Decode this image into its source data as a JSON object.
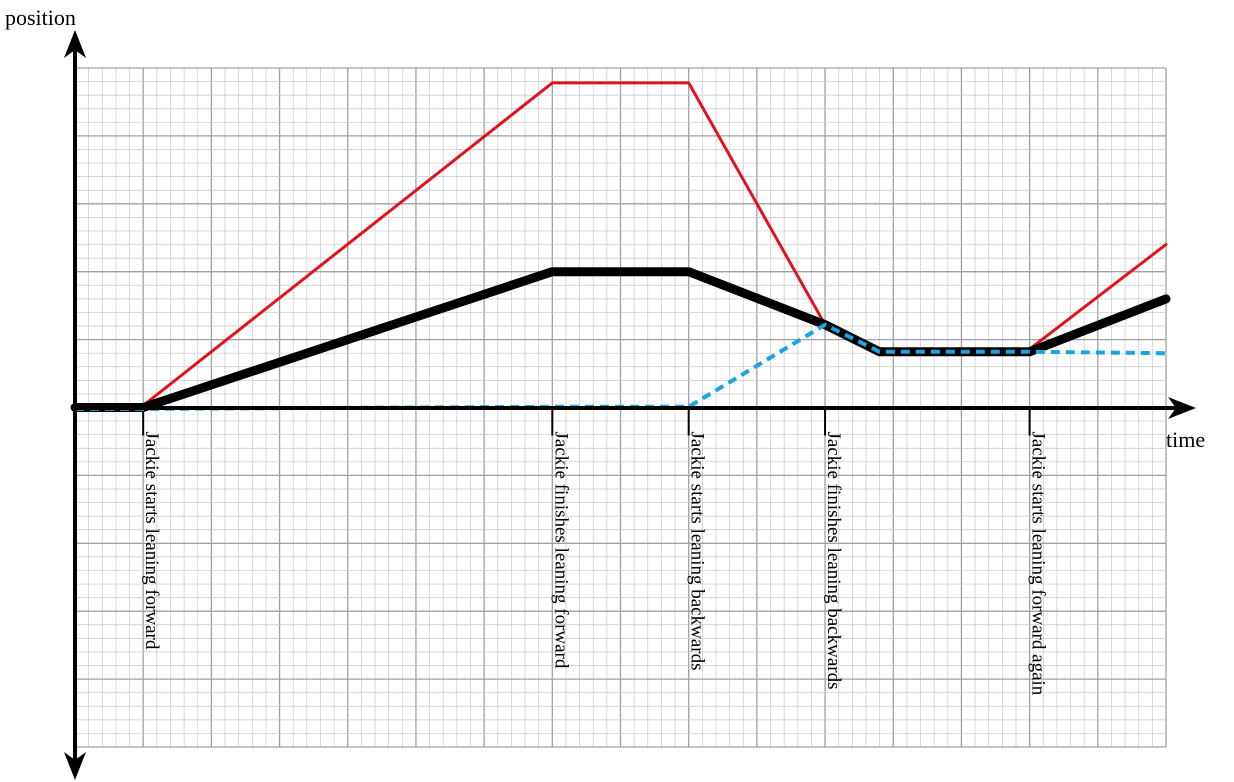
{
  "chart_data": {
    "type": "line",
    "title": "",
    "xlabel": "time",
    "ylabel": "position",
    "xlim": [
      0,
      16
    ],
    "ylim": [
      -5,
      5
    ],
    "grid": true,
    "grid_minor_per_major": 5,
    "events": [
      {
        "x": 1,
        "label": "Jackie starts leaning forward"
      },
      {
        "x": 7,
        "label": "Jackie finishes leaning forward"
      },
      {
        "x": 9,
        "label": "Jackie starts leaning backwards"
      },
      {
        "x": 11,
        "label": "Jackie finishes leaning backwards"
      },
      {
        "x": 14,
        "label": "Jackie starts leaning forward again"
      }
    ],
    "series": [
      {
        "color": "#e0141e",
        "style": "solid",
        "width": 3,
        "points": [
          [
            0,
            0.03
          ],
          [
            1,
            0.03
          ],
          [
            7,
            4.78
          ],
          [
            9,
            4.78
          ],
          [
            11,
            1.22
          ],
          [
            11.8,
            0.86
          ],
          [
            14,
            0.86
          ],
          [
            16,
            2.4
          ]
        ]
      },
      {
        "color": "#000000",
        "style": "solid",
        "width": 9,
        "points": [
          [
            0,
            0
          ],
          [
            1,
            0
          ],
          [
            7,
            2
          ],
          [
            9,
            2
          ],
          [
            11,
            1.22
          ],
          [
            11.8,
            0.82
          ],
          [
            14,
            0.82
          ],
          [
            16,
            1.6
          ]
        ]
      },
      {
        "color": "#18a5e0",
        "style": "dotted",
        "width": 4,
        "points": [
          [
            0,
            -0.02
          ],
          [
            1,
            -0.02
          ],
          [
            7,
            0.01
          ],
          [
            9,
            0.01
          ],
          [
            11,
            1.22
          ],
          [
            11.8,
            0.82
          ],
          [
            14,
            0.82
          ],
          [
            16,
            0.8
          ]
        ]
      }
    ]
  }
}
